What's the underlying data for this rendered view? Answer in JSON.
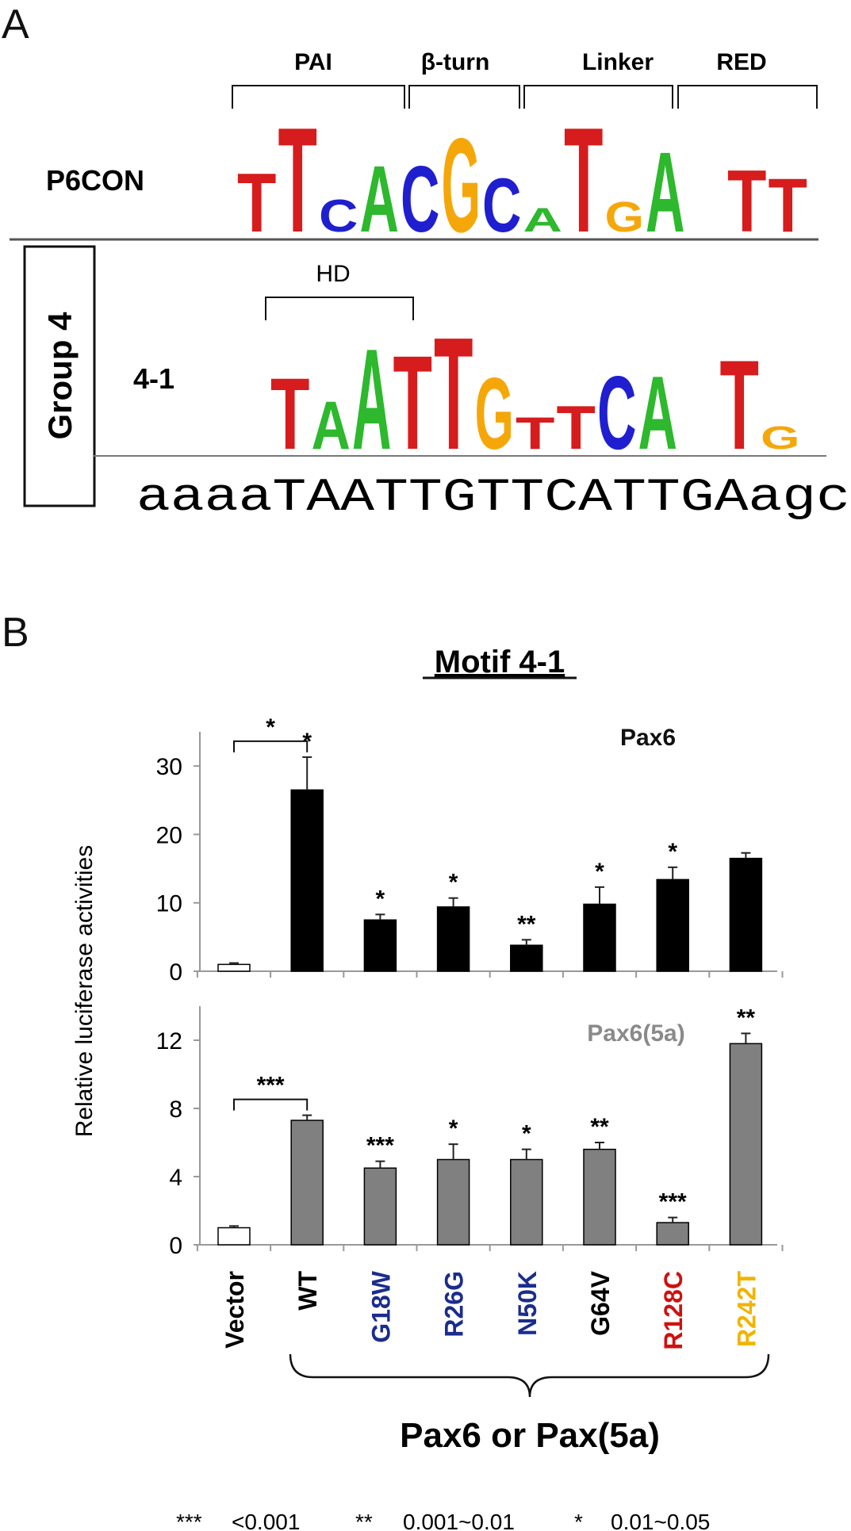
{
  "panel_a": {
    "letter": "A",
    "domains": [
      "PAI",
      "β-turn",
      "Linker",
      "RED"
    ],
    "hd_label": "HD",
    "p6con_label": "P6CON",
    "group_label": "Group 4",
    "motif_label": "4-1",
    "sequence": "aaaaTAATTGTTCATTGAagc",
    "p6con_logo": [
      {
        "base": "T",
        "h": 0.55
      },
      {
        "base": "T",
        "h": 0.98
      },
      {
        "base": "C",
        "h": 0.3
      },
      {
        "base": "A",
        "h": 0.62
      },
      {
        "base": "C",
        "h": 0.62
      },
      {
        "base": "G",
        "h": 0.88
      },
      {
        "base": "C",
        "h": 0.5
      },
      {
        "base": "A",
        "h": 0.22
      },
      {
        "base": "T",
        "h": 0.98
      },
      {
        "base": "G",
        "h": 0.28
      },
      {
        "base": "A",
        "h": 0.75
      },
      {
        "base": "",
        "h": 0
      },
      {
        "base": "T",
        "h": 0.58
      },
      {
        "base": "T",
        "h": 0.5
      }
    ],
    "motif_logo": [
      {
        "base": "T",
        "h": 0.62
      },
      {
        "base": "A",
        "h": 0.42
      },
      {
        "base": "A",
        "h": 0.88
      },
      {
        "base": "T",
        "h": 0.82
      },
      {
        "base": "T",
        "h": 0.98
      },
      {
        "base": "G",
        "h": 0.62
      },
      {
        "base": "T",
        "h": 0.28
      },
      {
        "base": "T",
        "h": 0.38
      },
      {
        "base": "C",
        "h": 0.64
      },
      {
        "base": "A",
        "h": 0.64
      },
      {
        "base": "",
        "h": 0
      },
      {
        "base": "T",
        "h": 0.78
      },
      {
        "base": "G",
        "h": 0.2
      }
    ],
    "base_colors": {
      "A": "#2db82d",
      "C": "#1f1fd0",
      "G": "#f5a70a",
      "T": "#d61c1c"
    }
  },
  "panel_b": {
    "letter": "B",
    "title": "Motif 4-1",
    "ylabel": "Relative luciferase activities",
    "group_label": "Pax6 or Pax(5a)",
    "legend": [
      {
        "stars": "***",
        "range": "<0.001"
      },
      {
        "stars": "**",
        "range": "0.001~0.01"
      },
      {
        "stars": "*",
        "range": "0.01~0.05"
      }
    ]
  },
  "chart_data": [
    {
      "type": "bar",
      "series_label": "Pax6",
      "categories": [
        "Vector",
        "WT",
        "G18W",
        "R26G",
        "N50K",
        "G64V",
        "R128C",
        "R242T"
      ],
      "category_colors": [
        "#000000",
        "#000000",
        "#1b2d8c",
        "#1b2d8c",
        "#1b2d8c",
        "#000000",
        "#d01010",
        "#f0b400"
      ],
      "values": [
        1.0,
        26.5,
        7.5,
        9.4,
        3.8,
        9.8,
        13.4,
        16.5
      ],
      "errors": [
        0.2,
        4.8,
        0.8,
        1.3,
        0.8,
        2.5,
        1.8,
        0.8
      ],
      "significance": [
        "",
        "*",
        "*",
        "*",
        "**",
        "*",
        "*",
        ""
      ],
      "bar_colors": [
        "#ffffff",
        "#000000",
        "#000000",
        "#000000",
        "#000000",
        "#000000",
        "#000000",
        "#000000"
      ],
      "ylim": [
        0,
        35
      ],
      "yticks": [
        0,
        10,
        20,
        30
      ],
      "bracket": {
        "from": "Vector",
        "to": "WT",
        "label": "*"
      }
    },
    {
      "type": "bar",
      "series_label": "Pax6(5a)",
      "categories": [
        "Vector",
        "WT",
        "G18W",
        "R26G",
        "N50K",
        "G64V",
        "R128C",
        "R242T"
      ],
      "values": [
        1.0,
        7.3,
        4.5,
        5.0,
        5.0,
        5.6,
        1.3,
        11.8
      ],
      "errors": [
        0.1,
        0.3,
        0.4,
        0.9,
        0.6,
        0.4,
        0.3,
        0.6
      ],
      "significance": [
        "",
        "",
        "***",
        "*",
        "*",
        "**",
        "***",
        "**"
      ],
      "bar_colors": [
        "#ffffff",
        "#808080",
        "#808080",
        "#808080",
        "#808080",
        "#808080",
        "#808080",
        "#808080"
      ],
      "ylim": [
        0,
        14
      ],
      "yticks": [
        0,
        4,
        8,
        12
      ],
      "bracket": {
        "from": "Vector",
        "to": "WT",
        "label": "***"
      }
    }
  ]
}
